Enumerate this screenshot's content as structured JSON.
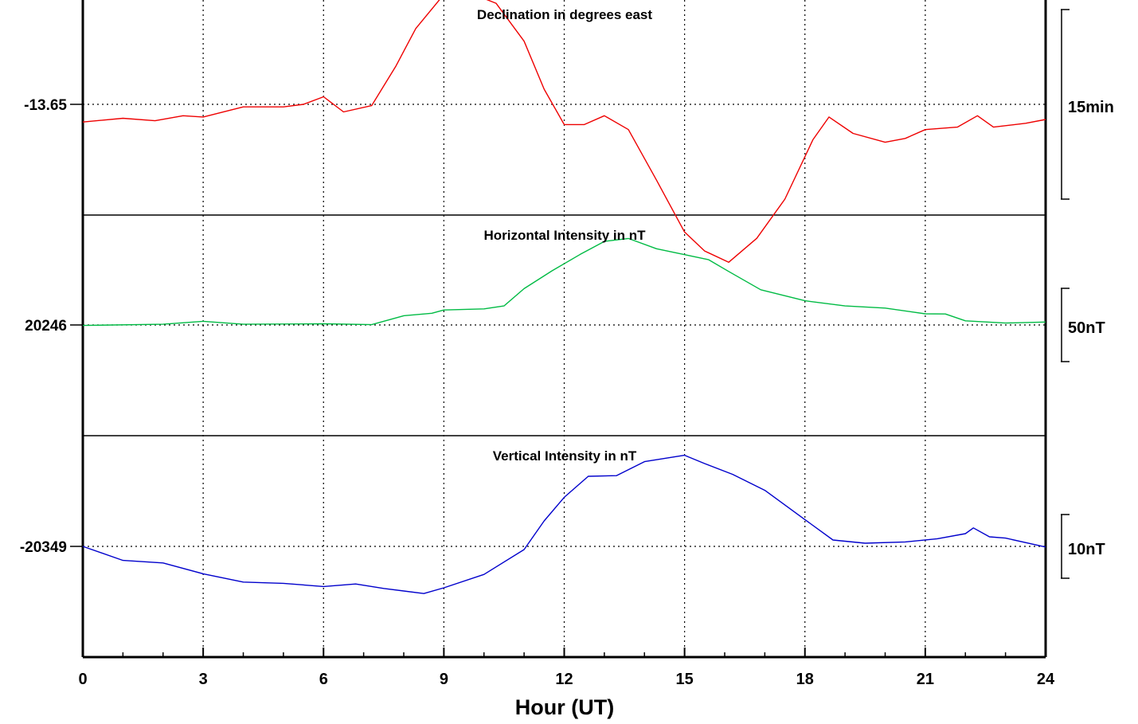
{
  "chart_data": {
    "type": "line",
    "xlabel": "Hour (UT)",
    "xlim": [
      0,
      24
    ],
    "x_ticks": [
      "0",
      "3",
      "6",
      "9",
      "12",
      "15",
      "18",
      "21",
      "24"
    ],
    "grid": true,
    "panels": [
      {
        "title": "Declination in degrees east",
        "baseline_label": "-13.65",
        "scale_label": "15min",
        "color": "#ee0000",
        "units_per_scale": 15,
        "points": [
          [
            0,
            -1.4
          ],
          [
            1,
            -1.1
          ],
          [
            1.8,
            -1.3
          ],
          [
            2.5,
            -0.9
          ],
          [
            3,
            -1
          ],
          [
            4,
            -0.2
          ],
          [
            5,
            -0.2
          ],
          [
            5.5,
            0
          ],
          [
            6,
            0.6
          ],
          [
            6.5,
            -0.6
          ],
          [
            7.2,
            -0.1
          ],
          [
            7.8,
            3
          ],
          [
            8.3,
            6
          ],
          [
            9,
            8.7
          ],
          [
            9.5,
            9
          ],
          [
            10.3,
            8
          ],
          [
            11,
            5
          ],
          [
            11.5,
            1.2
          ],
          [
            12,
            -1.6
          ],
          [
            12.5,
            -1.6
          ],
          [
            13,
            -0.9
          ],
          [
            13.6,
            -2
          ],
          [
            14.3,
            -6
          ],
          [
            15,
            -10.1
          ],
          [
            15.5,
            -11.6
          ],
          [
            16.1,
            -12.5
          ],
          [
            16.8,
            -10.6
          ],
          [
            17.5,
            -7.5
          ],
          [
            18.2,
            -2.8
          ],
          [
            18.6,
            -1
          ],
          [
            19.2,
            -2.3
          ],
          [
            20,
            -3
          ],
          [
            20.5,
            -2.7
          ],
          [
            21,
            -2
          ],
          [
            21.8,
            -1.8
          ],
          [
            22.3,
            -0.9
          ],
          [
            22.7,
            -1.8
          ],
          [
            23.5,
            -1.5
          ],
          [
            24,
            -1.2
          ]
        ]
      },
      {
        "title": "Horizontal Intensity in nT",
        "baseline_label": "20246",
        "scale_label": "50nT",
        "color": "#00bb44",
        "units_per_scale": 50,
        "points": [
          [
            0,
            -0.3
          ],
          [
            2,
            0.5
          ],
          [
            3,
            2.5
          ],
          [
            4,
            0.5
          ],
          [
            6,
            0.8
          ],
          [
            7.2,
            0.2
          ],
          [
            8,
            6.3
          ],
          [
            8.7,
            8
          ],
          [
            9,
            10.2
          ],
          [
            10,
            11
          ],
          [
            10.5,
            13
          ],
          [
            11,
            24.8
          ],
          [
            11.7,
            37
          ],
          [
            12.4,
            48.2
          ],
          [
            13,
            57
          ],
          [
            13.6,
            59
          ],
          [
            14.3,
            52
          ],
          [
            15,
            48
          ],
          [
            15.6,
            44.5
          ],
          [
            16.1,
            36.5
          ],
          [
            16.9,
            24
          ],
          [
            18,
            16.5
          ],
          [
            19,
            13
          ],
          [
            20,
            11.5
          ],
          [
            21,
            7.6
          ],
          [
            21.5,
            7.5
          ],
          [
            22,
            2.8
          ],
          [
            23,
            1.3
          ],
          [
            24,
            2
          ]
        ]
      },
      {
        "title": "Vertical Intensity in nT",
        "baseline_label": "-20349",
        "scale_label": "10nT",
        "color": "#0000cc",
        "units_per_scale": 10,
        "points": [
          [
            0,
            0
          ],
          [
            1,
            -2.2
          ],
          [
            2,
            -2.6
          ],
          [
            3,
            -4.3
          ],
          [
            4,
            -5.6
          ],
          [
            5,
            -5.8
          ],
          [
            6,
            -6.3
          ],
          [
            6.8,
            -5.9
          ],
          [
            7.5,
            -6.6
          ],
          [
            8.5,
            -7.4
          ],
          [
            9,
            -6.5
          ],
          [
            10,
            -4.4
          ],
          [
            11,
            -0.5
          ],
          [
            11.5,
            4
          ],
          [
            12,
            7.7
          ],
          [
            12.6,
            11
          ],
          [
            13.3,
            11.1
          ],
          [
            14,
            13.3
          ],
          [
            15,
            14.3
          ],
          [
            15.5,
            13
          ],
          [
            16.2,
            11.3
          ],
          [
            17,
            8.8
          ],
          [
            18,
            4.2
          ],
          [
            18.7,
            1
          ],
          [
            19.5,
            0.5
          ],
          [
            20.5,
            0.7
          ],
          [
            21.3,
            1.2
          ],
          [
            22,
            2
          ],
          [
            22.2,
            2.9
          ],
          [
            22.6,
            1.5
          ],
          [
            23,
            1.3
          ],
          [
            24,
            -0.1
          ]
        ]
      }
    ]
  }
}
